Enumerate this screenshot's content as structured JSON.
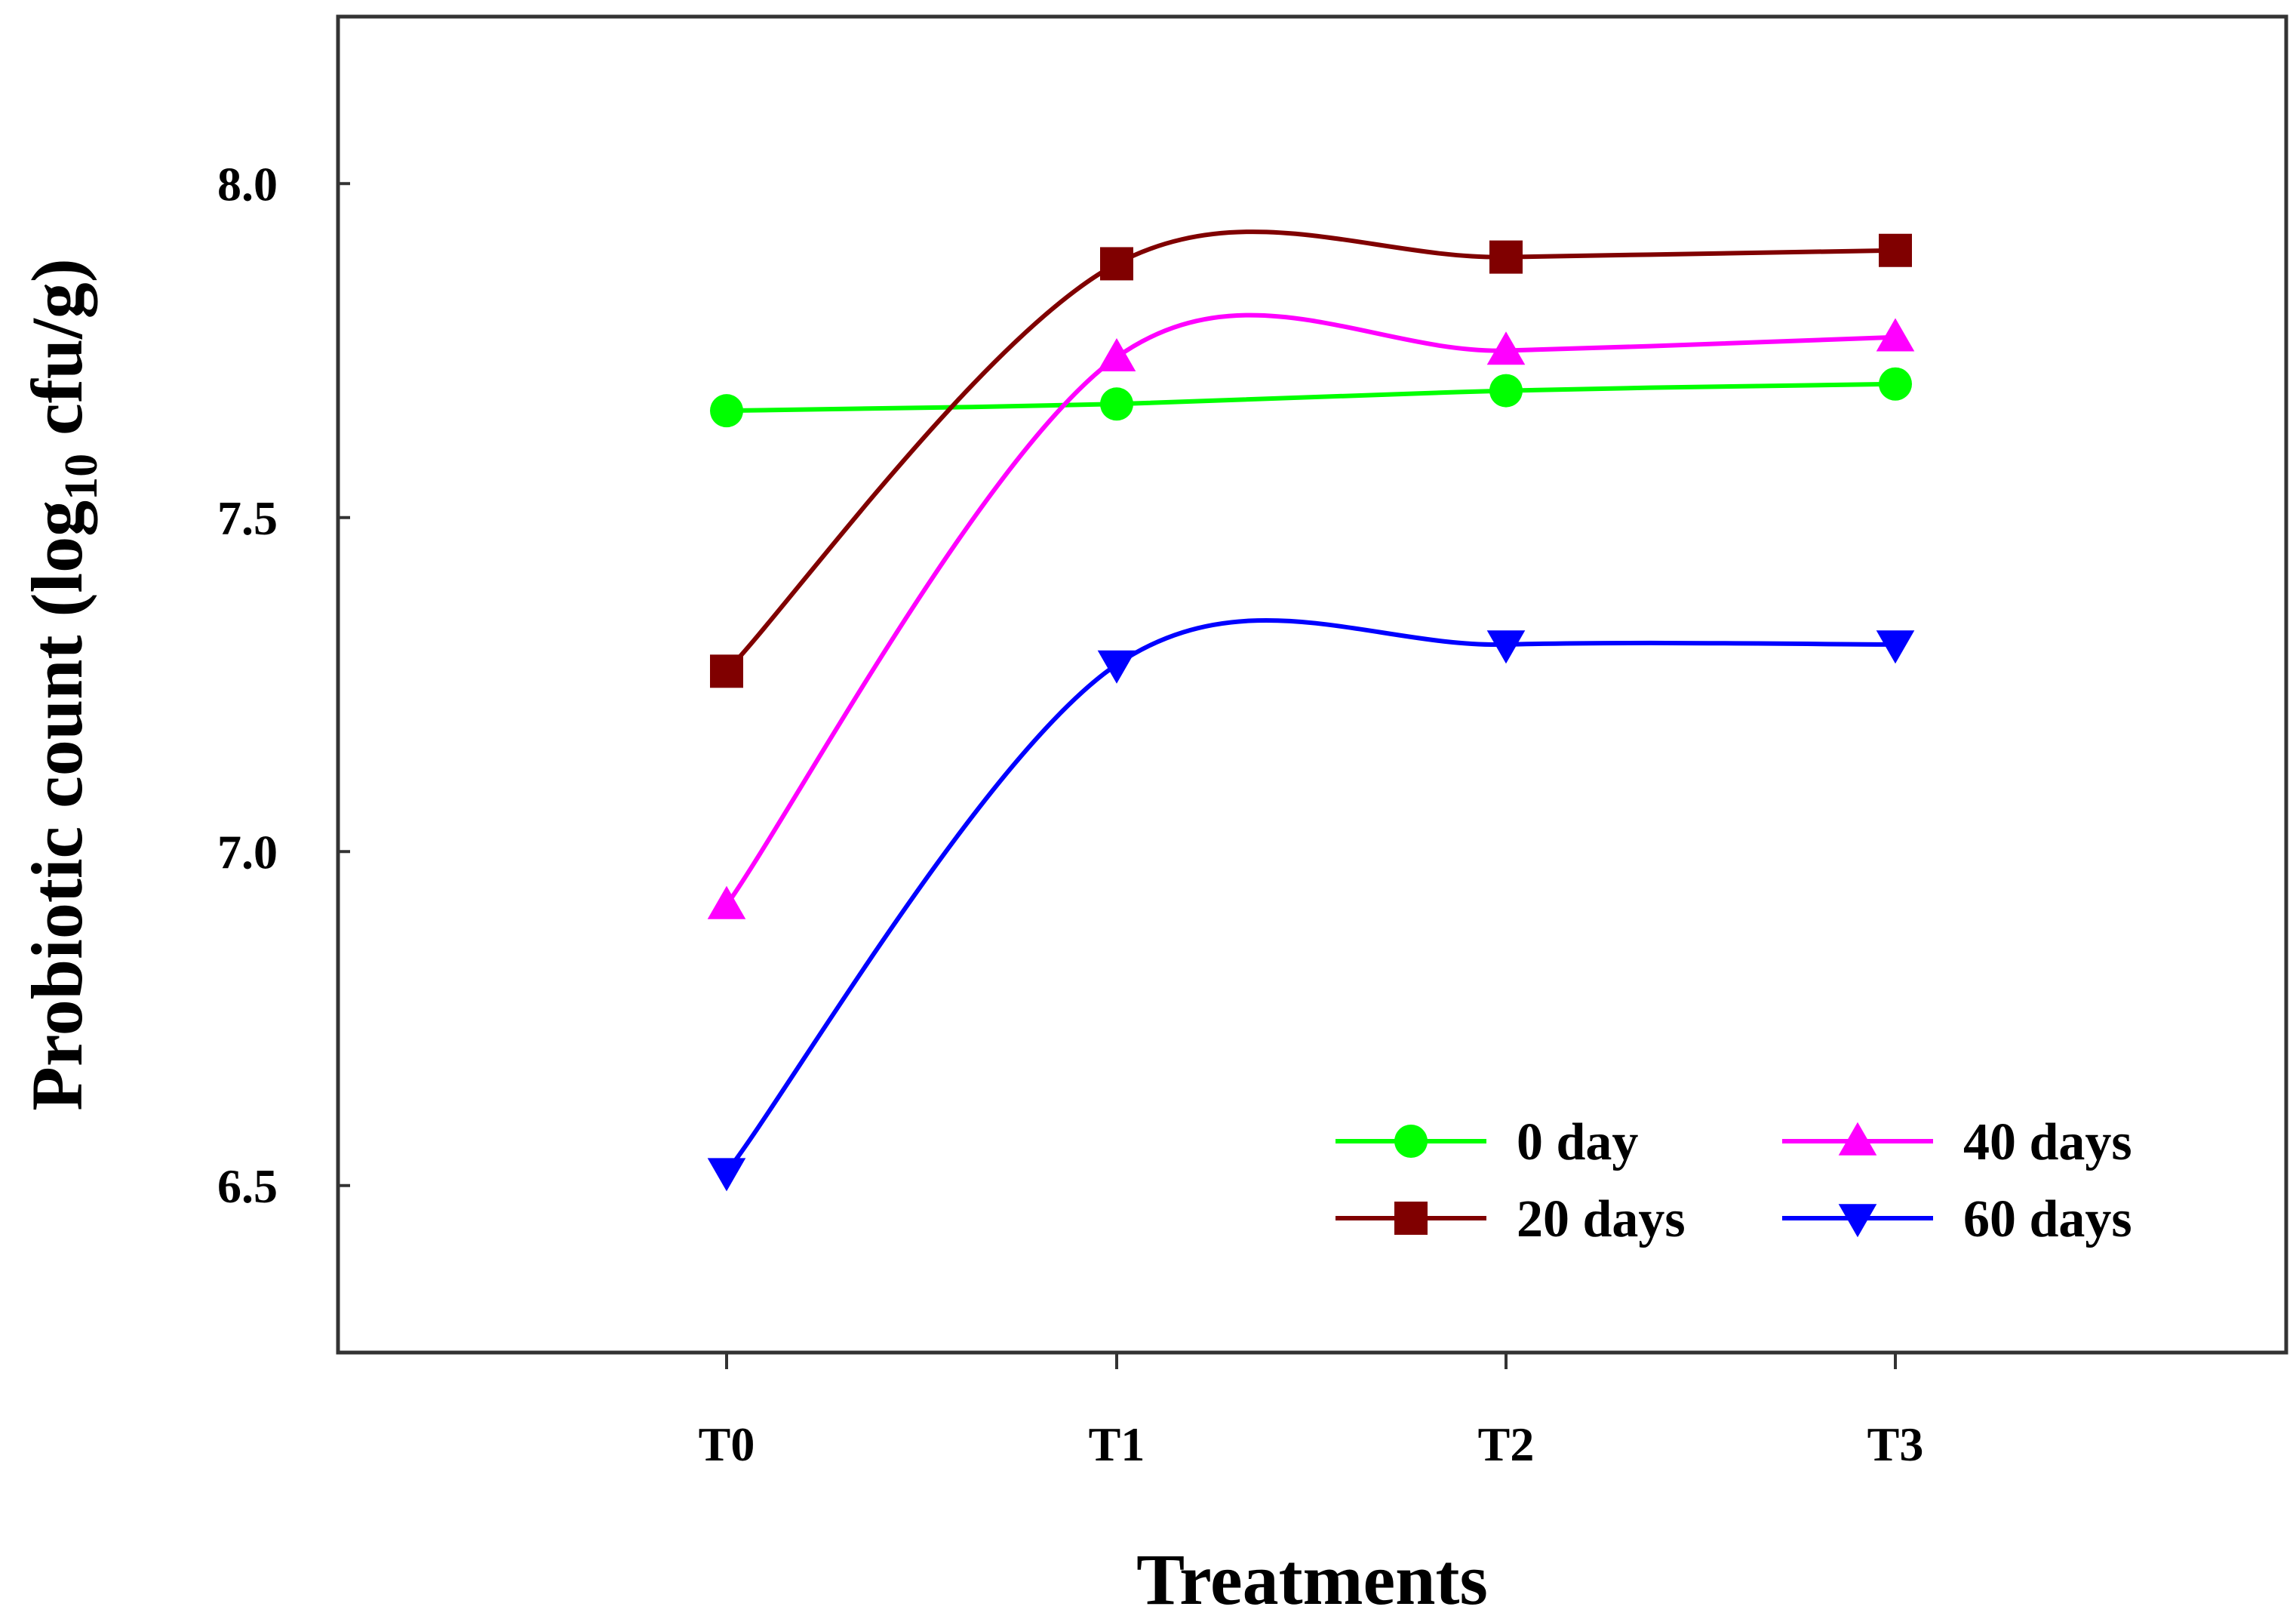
{
  "chart_data": {
    "type": "line",
    "title": "",
    "xlabel": "Treatments",
    "ylabel_main": "Probiotic count (log",
    "ylabel_sub": "10",
    "ylabel_tail": " cfu/g)",
    "categories": [
      "T0",
      "T1",
      "T2",
      "T3"
    ],
    "ylim": [
      6.25,
      8.25
    ],
    "yticks": [
      6.5,
      7.0,
      7.5,
      8.0
    ],
    "ytick_labels": [
      "6.5",
      "7.0",
      "7.5",
      "8.0"
    ],
    "grid": false,
    "smooth": true,
    "legend_position": "lower-right",
    "series": [
      {
        "name": "0 day",
        "color": "#00ff00",
        "marker": "circle",
        "values": [
          7.66,
          7.67,
          7.69,
          7.7
        ]
      },
      {
        "name": "20 days",
        "color": "#800000",
        "marker": "square",
        "values": [
          7.27,
          7.88,
          7.89,
          7.9
        ]
      },
      {
        "name": "40 days",
        "color": "#ff00ff",
        "marker": "triangle-up",
        "values": [
          6.92,
          7.74,
          7.75,
          7.77
        ]
      },
      {
        "name": "60 days",
        "color": "#0000ff",
        "marker": "triangle-down",
        "values": [
          6.52,
          7.28,
          7.31,
          7.31
        ]
      }
    ]
  }
}
